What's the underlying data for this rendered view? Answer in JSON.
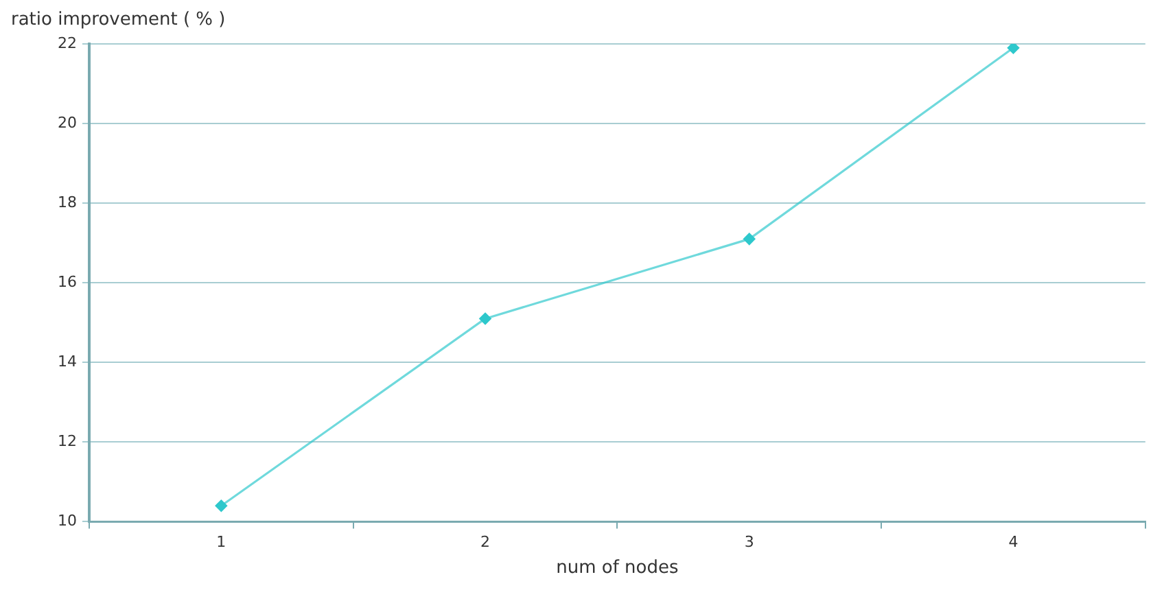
{
  "chart_data": {
    "type": "line",
    "ylabel": "ratio improvement ( % )",
    "xlabel": "num of nodes",
    "categories": [
      "1",
      "2",
      "3",
      "4"
    ],
    "series": [
      {
        "color": "#2ec8cc",
        "values": [
          10.4,
          15.1,
          17.1,
          21.9
        ]
      }
    ],
    "ylim": [
      10,
      22
    ],
    "yticks": [
      10,
      12,
      14,
      16,
      18,
      20,
      22
    ],
    "grid": "y",
    "legend": false,
    "marker": "diamond",
    "line_style": "solid"
  }
}
